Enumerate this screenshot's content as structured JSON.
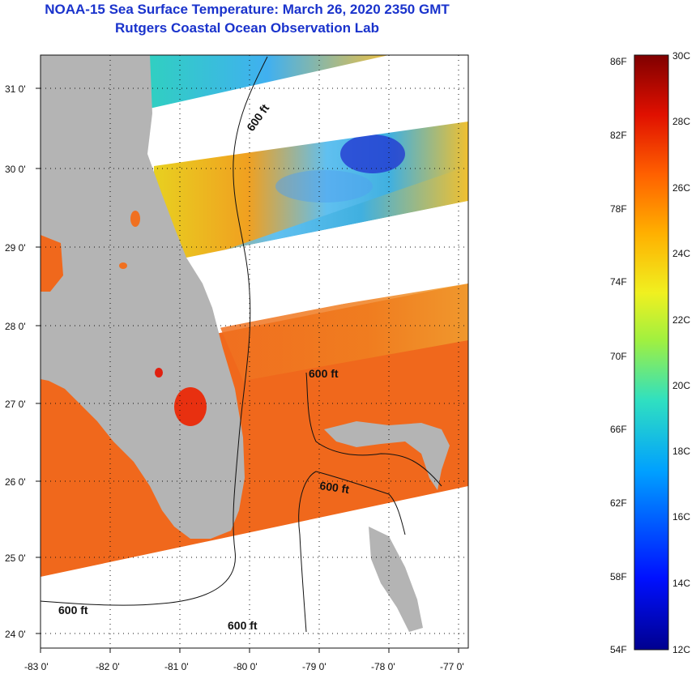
{
  "header": {
    "title": "NOAA-15 Sea Surface Temperature:  March 26, 2020 2350 GMT",
    "subtitle": "Rutgers Coastal Ocean Observation Lab"
  },
  "map": {
    "lon_labels": [
      "-83 0'",
      "-82 0'",
      "-81 0'",
      "-80 0'",
      "-79 0'",
      "-78 0'",
      "-77 0'"
    ],
    "lat_labels": [
      "31 0'",
      "30 0'",
      "29 0'",
      "28 0'",
      "27 0'",
      "26 0'",
      "25 0'",
      "24 0'"
    ],
    "contour_label": "600 ft"
  },
  "colorbar": {
    "fahrenheit_labels": [
      "86F",
      "82F",
      "78F",
      "74F",
      "70F",
      "66F",
      "62F",
      "58F",
      "54F"
    ],
    "celsius_labels": [
      "30C",
      "28C",
      "26C",
      "24C",
      "22C",
      "20C",
      "18C",
      "16C",
      "14C",
      "12C"
    ]
  },
  "colors": {
    "land": "#b4b4b4",
    "warm_water": "#f06a1c",
    "title": "#1a33cc"
  }
}
